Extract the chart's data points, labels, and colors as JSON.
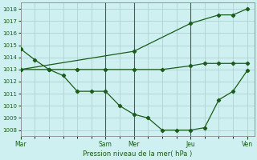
{
  "title": "",
  "xlabel": "Pression niveau de la mer( hPa )",
  "background_color": "#cff0f0",
  "grid_color": "#aacccc",
  "line_color": "#1a5c1a",
  "marker_color": "#1a5c1a",
  "ylim": [
    1007.5,
    1018.5
  ],
  "yticks": [
    1008,
    1009,
    1010,
    1011,
    1012,
    1013,
    1014,
    1015,
    1016,
    1017,
    1018
  ],
  "day_labels": [
    "Mar",
    "Sam",
    "Mer",
    "Jeu",
    "Ven"
  ],
  "day_positions": [
    0,
    12,
    16,
    24,
    32
  ],
  "xlim": [
    0,
    33
  ],
  "vline_positions": [
    12,
    16,
    24
  ],
  "vline_color": "#555555",
  "series1_x": [
    0,
    2,
    4,
    6,
    8,
    10,
    12,
    14,
    16,
    18,
    20,
    22,
    24,
    26,
    28,
    30,
    32
  ],
  "series1_y": [
    1014.7,
    1013.8,
    1013.0,
    1012.5,
    1011.2,
    1011.2,
    1011.2,
    1010.0,
    1009.3,
    1009.0,
    1008.0,
    1008.0,
    1008.0,
    1008.2,
    1010.5,
    1011.2,
    1012.9
  ],
  "series2_x": [
    0,
    4,
    8,
    12,
    16,
    20,
    24,
    26,
    28,
    30,
    32
  ],
  "series2_y": [
    1013.0,
    1013.0,
    1013.0,
    1013.0,
    1013.0,
    1013.0,
    1013.3,
    1013.5,
    1013.5,
    1013.5,
    1013.5
  ],
  "series3_x": [
    0,
    16,
    24,
    28,
    30,
    32
  ],
  "series3_y": [
    1013.0,
    1014.5,
    1016.8,
    1017.5,
    1017.5,
    1018.0
  ]
}
